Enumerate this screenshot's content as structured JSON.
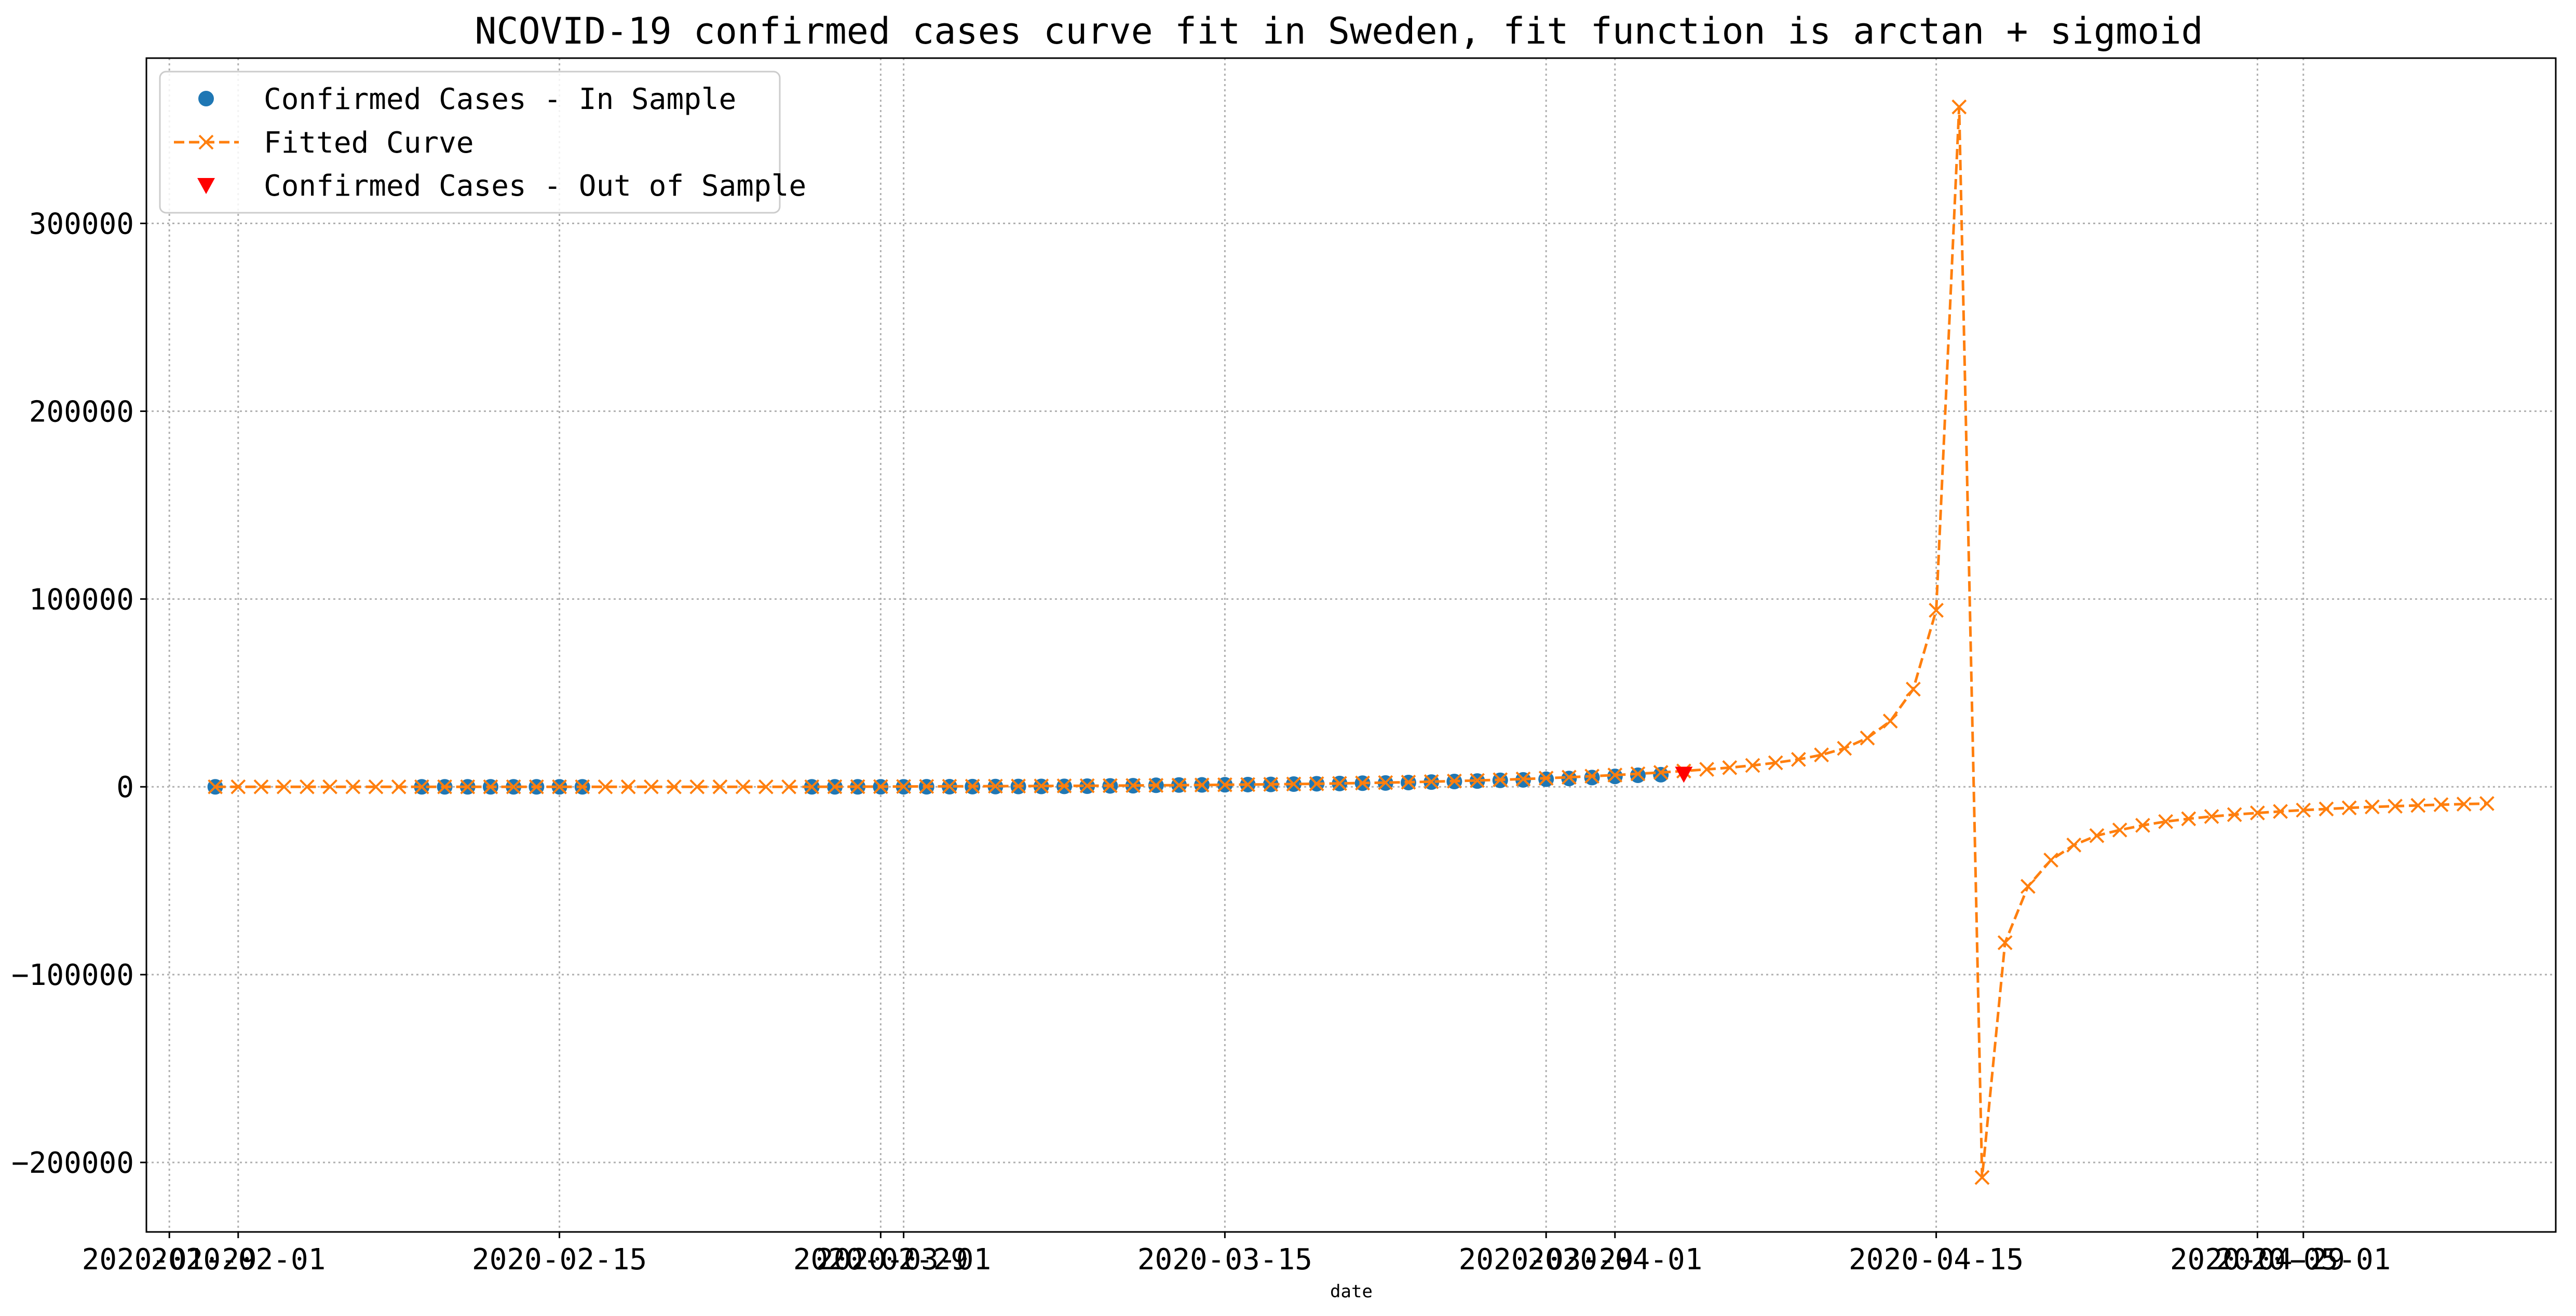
{
  "chart_data": {
    "type": "line",
    "title": "NCOVID-19 confirmed cases curve fit in Sweden, fit function is arctan + sigmoid",
    "xlabel": "date",
    "ylabel": "",
    "xlim": [
      "2020-01-28",
      "2020-05-12"
    ],
    "ylim": [
      -237000,
      388000
    ],
    "y_ticks": [
      -200000,
      -100000,
      0,
      100000,
      200000,
      300000
    ],
    "x_ticks": [
      {
        "date": "2020-01-29",
        "label": "2020-01-29"
      },
      {
        "date": "2020-02-01",
        "label": "2020-02-01"
      },
      {
        "date": "2020-02-15",
        "label": "2020-02-15"
      },
      {
        "date": "2020-02-29",
        "label": "2020-02-29"
      },
      {
        "date": "2020-03-01",
        "label": "2020-03-01"
      },
      {
        "date": "2020-03-15",
        "label": "2020-03-15"
      },
      {
        "date": "2020-03-29",
        "label": "2020-03-29"
      },
      {
        "date": "2020-04-01",
        "label": "2020-04-01"
      },
      {
        "date": "2020-04-15",
        "label": "2020-04-15"
      },
      {
        "date": "2020-04-29",
        "label": "2020-04-29"
      },
      {
        "date": "2020-05-01",
        "label": "2020-05-01"
      }
    ],
    "grid": true,
    "legend_position": "upper-left",
    "series": [
      {
        "name": "Confirmed Cases - In Sample",
        "style": "markers",
        "marker": "circle",
        "color": "#1f77b4",
        "points": [
          [
            "2020-01-31",
            1
          ],
          [
            "2020-02-09",
            1
          ],
          [
            "2020-02-10",
            1
          ],
          [
            "2020-02-11",
            1
          ],
          [
            "2020-02-12",
            1
          ],
          [
            "2020-02-13",
            1
          ],
          [
            "2020-02-14",
            1
          ],
          [
            "2020-02-15",
            1
          ],
          [
            "2020-02-16",
            1
          ],
          [
            "2020-02-26",
            2
          ],
          [
            "2020-02-27",
            7
          ],
          [
            "2020-02-28",
            12
          ],
          [
            "2020-02-29",
            14
          ],
          [
            "2020-03-01",
            15
          ],
          [
            "2020-03-02",
            30
          ],
          [
            "2020-03-03",
            52
          ],
          [
            "2020-03-04",
            94
          ],
          [
            "2020-03-05",
            137
          ],
          [
            "2020-03-06",
            161
          ],
          [
            "2020-03-07",
            203
          ],
          [
            "2020-03-08",
            248
          ],
          [
            "2020-03-09",
            355
          ],
          [
            "2020-03-10",
            500
          ],
          [
            "2020-03-11",
            599
          ],
          [
            "2020-03-12",
            814
          ],
          [
            "2020-03-13",
            961
          ],
          [
            "2020-03-14",
            1022
          ],
          [
            "2020-03-15",
            1103
          ],
          [
            "2020-03-16",
            1190
          ],
          [
            "2020-03-17",
            1279
          ],
          [
            "2020-03-18",
            1439
          ],
          [
            "2020-03-19",
            1639
          ],
          [
            "2020-03-20",
            1763
          ],
          [
            "2020-03-21",
            1934
          ],
          [
            "2020-03-22",
            2046
          ],
          [
            "2020-03-23",
            2286
          ],
          [
            "2020-03-24",
            2526
          ],
          [
            "2020-03-25",
            2840
          ],
          [
            "2020-03-26",
            3069
          ],
          [
            "2020-03-27",
            3447
          ],
          [
            "2020-03-28",
            3700
          ],
          [
            "2020-03-29",
            4028
          ],
          [
            "2020-03-30",
            4435
          ],
          [
            "2020-03-31",
            4947
          ],
          [
            "2020-04-01",
            5568
          ],
          [
            "2020-04-02",
            6131
          ],
          [
            "2020-04-03",
            6443
          ]
        ]
      },
      {
        "name": "Fitted Curve",
        "style": "dashed-line-with-x-markers",
        "color": "#ff7f0e",
        "points": [
          [
            "2020-01-31",
            0
          ],
          [
            "2020-02-01",
            0
          ],
          [
            "2020-02-02",
            0
          ],
          [
            "2020-02-03",
            0
          ],
          [
            "2020-02-04",
            0
          ],
          [
            "2020-02-05",
            0
          ],
          [
            "2020-02-06",
            0
          ],
          [
            "2020-02-07",
            0
          ],
          [
            "2020-02-08",
            0
          ],
          [
            "2020-02-09",
            0
          ],
          [
            "2020-02-10",
            0
          ],
          [
            "2020-02-11",
            0
          ],
          [
            "2020-02-12",
            0
          ],
          [
            "2020-02-13",
            0
          ],
          [
            "2020-02-14",
            0
          ],
          [
            "2020-02-15",
            0
          ],
          [
            "2020-02-16",
            0
          ],
          [
            "2020-02-17",
            0
          ],
          [
            "2020-02-18",
            0
          ],
          [
            "2020-02-19",
            0
          ],
          [
            "2020-02-20",
            0
          ],
          [
            "2020-02-21",
            0
          ],
          [
            "2020-02-22",
            0
          ],
          [
            "2020-02-23",
            0
          ],
          [
            "2020-02-24",
            0
          ],
          [
            "2020-02-25",
            0
          ],
          [
            "2020-02-26",
            0
          ],
          [
            "2020-02-27",
            50
          ],
          [
            "2020-02-28",
            90
          ],
          [
            "2020-02-29",
            130
          ],
          [
            "2020-03-01",
            170
          ],
          [
            "2020-03-02",
            210
          ],
          [
            "2020-03-03",
            250
          ],
          [
            "2020-03-04",
            290
          ],
          [
            "2020-03-05",
            340
          ],
          [
            "2020-03-06",
            390
          ],
          [
            "2020-03-07",
            440
          ],
          [
            "2020-03-08",
            500
          ],
          [
            "2020-03-09",
            560
          ],
          [
            "2020-03-10",
            630
          ],
          [
            "2020-03-11",
            700
          ],
          [
            "2020-03-12",
            780
          ],
          [
            "2020-03-13",
            870
          ],
          [
            "2020-03-14",
            970
          ],
          [
            "2020-03-15",
            1080
          ],
          [
            "2020-03-16",
            1200
          ],
          [
            "2020-03-17",
            1330
          ],
          [
            "2020-03-18",
            1480
          ],
          [
            "2020-03-19",
            1640
          ],
          [
            "2020-03-20",
            1820
          ],
          [
            "2020-03-21",
            2020
          ],
          [
            "2020-03-22",
            2240
          ],
          [
            "2020-03-23",
            2480
          ],
          [
            "2020-03-24",
            2750
          ],
          [
            "2020-03-25",
            3050
          ],
          [
            "2020-03-26",
            3380
          ],
          [
            "2020-03-27",
            3750
          ],
          [
            "2020-03-28",
            4160
          ],
          [
            "2020-03-29",
            4610
          ],
          [
            "2020-03-30",
            5110
          ],
          [
            "2020-03-31",
            5660
          ],
          [
            "2020-04-01",
            6270
          ],
          [
            "2020-04-02",
            6940
          ],
          [
            "2020-04-03",
            7650
          ],
          [
            "2020-04-04",
            8400
          ],
          [
            "2020-04-05",
            9300
          ],
          [
            "2020-04-06",
            10200
          ],
          [
            "2020-04-07",
            11400
          ],
          [
            "2020-04-08",
            12800
          ],
          [
            "2020-04-09",
            14600
          ],
          [
            "2020-04-10",
            17000
          ],
          [
            "2020-04-11",
            20500
          ],
          [
            "2020-04-12",
            26000
          ],
          [
            "2020-04-13",
            35000
          ],
          [
            "2020-04-14",
            52000
          ],
          [
            "2020-04-15",
            94000
          ],
          [
            "2020-04-16",
            362000
          ],
          [
            "2020-04-17",
            -208000
          ],
          [
            "2020-04-18",
            -83000
          ],
          [
            "2020-04-19",
            -53000
          ],
          [
            "2020-04-20",
            -39000
          ],
          [
            "2020-04-21",
            -31000
          ],
          [
            "2020-04-22",
            -26000
          ],
          [
            "2020-04-23",
            -23000
          ],
          [
            "2020-04-24",
            -20500
          ],
          [
            "2020-04-25",
            -18500
          ],
          [
            "2020-04-26",
            -17000
          ],
          [
            "2020-04-27",
            -15800
          ],
          [
            "2020-04-28",
            -14800
          ],
          [
            "2020-04-29",
            -13900
          ],
          [
            "2020-04-30",
            -13100
          ],
          [
            "2020-05-01",
            -12400
          ],
          [
            "2020-05-02",
            -11800
          ],
          [
            "2020-05-03",
            -11200
          ],
          [
            "2020-05-04",
            -10700
          ],
          [
            "2020-05-05",
            -10300
          ],
          [
            "2020-05-06",
            -9900
          ],
          [
            "2020-05-07",
            -9500
          ],
          [
            "2020-05-08",
            -9200
          ],
          [
            "2020-05-09",
            -8900
          ]
        ]
      },
      {
        "name": "Confirmed Cases - Out of Sample",
        "style": "markers",
        "marker": "triangle-down",
        "color": "#ff0000",
        "points": [
          [
            "2020-04-04",
            6830
          ]
        ]
      }
    ]
  }
}
